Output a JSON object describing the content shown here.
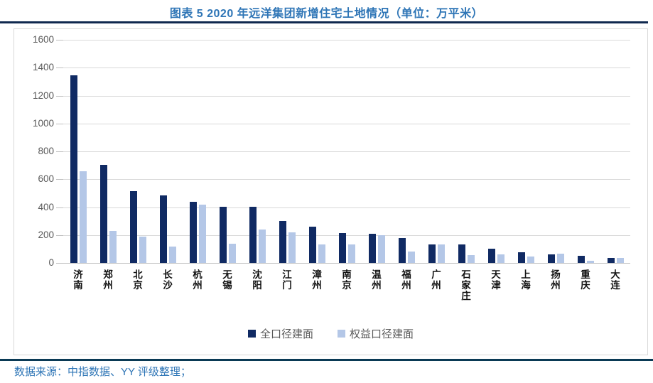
{
  "header": {
    "title": "图表 5 2020 年远洋集团新增住宅土地情况（单位：万平米）"
  },
  "chart_data": {
    "type": "bar",
    "title": "图表 5 2020 年远洋集团新增住宅土地情况（单位：万平米）",
    "unit": "万平米",
    "categories": [
      "济南",
      "郑州",
      "北京",
      "长沙",
      "杭州",
      "无锡",
      "沈阳",
      "江门",
      "漳州",
      "南京",
      "温州",
      "福州",
      "广州",
      "石家庄",
      "天津",
      "上海",
      "扬州",
      "重庆",
      "大连"
    ],
    "series": [
      {
        "name": "全口径建面",
        "color": "#102a63",
        "values": [
          1345,
          705,
          515,
          485,
          440,
          405,
          400,
          300,
          260,
          215,
          210,
          180,
          130,
          130,
          100,
          75,
          60,
          50,
          35
        ]
      },
      {
        "name": "权益口径建面",
        "color": "#b4c7e7",
        "values": [
          655,
          230,
          190,
          115,
          420,
          140,
          240,
          220,
          135,
          130,
          200,
          80,
          135,
          55,
          60,
          45,
          65,
          15,
          35
        ]
      }
    ],
    "ylim": [
      0,
      1600
    ],
    "ytick_step": 200,
    "grid": true,
    "legend_position": "bottom"
  },
  "footer": {
    "source": "数据来源：中指数据、YY 评级整理；"
  }
}
